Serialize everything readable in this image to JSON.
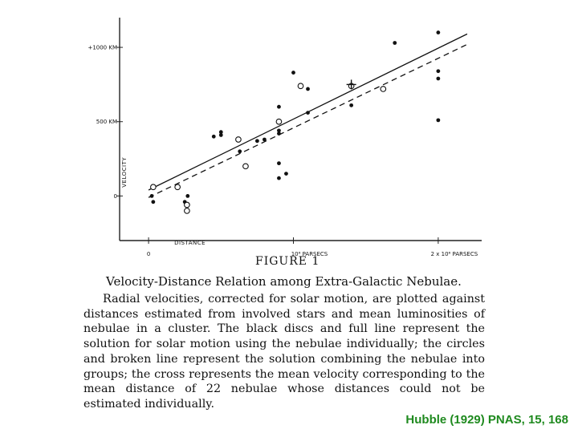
{
  "chart_data": {
    "type": "scatter",
    "title": "",
    "xlabel": "DISTANCE",
    "ylabel": "VELOCITY",
    "x_ticks": [
      {
        "value": 0,
        "label": "0"
      },
      {
        "value": 1000000,
        "label": "10⁶ PARSECS"
      },
      {
        "value": 2000000,
        "label": "2 x 10⁶ PARSECS"
      }
    ],
    "y_ticks": [
      {
        "value": 0,
        "label": "0"
      },
      {
        "value": 500,
        "label": "500 KM"
      },
      {
        "value": 1000,
        "label": "+1000 KM"
      }
    ],
    "xlim": [
      -200000,
      2300000
    ],
    "ylim": [
      -300,
      1200
    ],
    "grid": false,
    "series": [
      {
        "marker": "filled-disc",
        "points": [
          [
            32000,
            -40
          ],
          [
            22000,
            0
          ],
          [
            250000,
            -40
          ],
          [
            270000,
            0
          ],
          [
            450000,
            400
          ],
          [
            500000,
            430
          ],
          [
            500000,
            410
          ],
          [
            630000,
            300
          ],
          [
            800000,
            380
          ],
          [
            900000,
            600
          ],
          [
            900000,
            440
          ],
          [
            900000,
            420
          ],
          [
            900000,
            220
          ],
          [
            900000,
            120
          ],
          [
            1000000,
            830
          ],
          [
            1100000,
            560
          ],
          [
            1100000,
            720
          ],
          [
            1400000,
            610
          ],
          [
            1700000,
            1030
          ],
          [
            2000000,
            1100
          ],
          [
            2000000,
            840
          ],
          [
            2000000,
            790
          ],
          [
            2000000,
            510
          ],
          [
            950000,
            150
          ],
          [
            750000,
            370
          ]
        ]
      },
      {
        "marker": "open-circle",
        "points": [
          [
            32000,
            60
          ],
          [
            200000,
            60
          ],
          [
            265000,
            -60
          ],
          [
            265000,
            -100
          ],
          [
            620000,
            380
          ],
          [
            670000,
            200
          ],
          [
            900000,
            500
          ],
          [
            1050000,
            740
          ],
          [
            1400000,
            740
          ],
          [
            1620000,
            720
          ]
        ]
      },
      {
        "marker": "cross",
        "points": [
          [
            1400000,
            750
          ]
        ]
      }
    ],
    "lines": [
      {
        "style": "solid",
        "from": [
          0,
          40
        ],
        "to": [
          2200000,
          1090
        ]
      },
      {
        "style": "dashed",
        "from": [
          0,
          -10
        ],
        "to": [
          2200000,
          1020
        ]
      }
    ]
  },
  "figure_label": "FIGURE 1",
  "figure_title": "Velocity-Distance Relation among Extra-Galactic Nebulae.",
  "caption": "Radial velocities, corrected for solar motion, are plotted against distances estimated from involved stars and mean luminosities of nebulae in a cluster. The black discs and full line represent the solution for solar motion using the nebulae individually; the circles and broken line represent the solution combining the nebulae into groups; the cross represents the mean velocity corresponding to the mean distance of 22 nebulae whose distances could not be estimated individually.",
  "citation": "Hubble (1929) PNAS, 15, 168"
}
